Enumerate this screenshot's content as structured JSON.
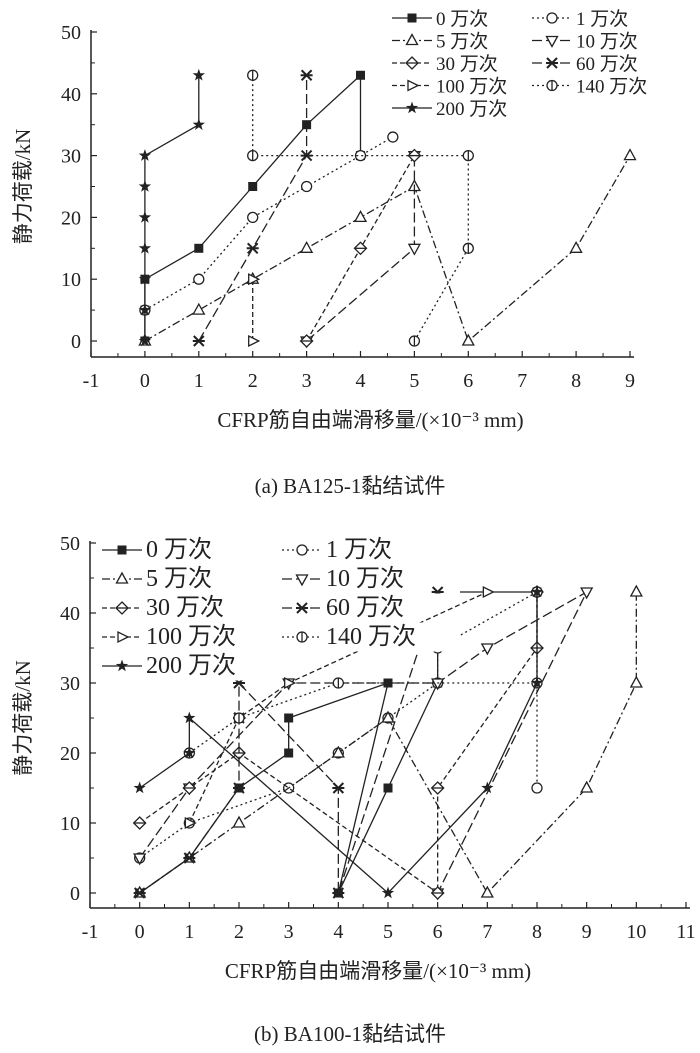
{
  "chart_data": [
    {
      "type": "line",
      "caption": "(a) BA125-1黏结试件",
      "xlabel": "CFRP筋自由端滑移量/(×10⁻³ mm)",
      "ylabel": "静力荷载/kN",
      "xlim": [
        -1,
        9
      ],
      "ylim": [
        0,
        50
      ],
      "xticks": [
        -1,
        0,
        1,
        2,
        3,
        4,
        5,
        6,
        7,
        8,
        9
      ],
      "yticks": [
        0,
        10,
        20,
        30,
        40,
        50
      ],
      "grid": false,
      "legend": "top-right",
      "series": [
        {
          "name": "0 万次",
          "marker": "square-filled",
          "dash": "solid",
          "points": [
            [
              0,
              0
            ],
            [
              0,
              5
            ],
            [
              0,
              10
            ],
            [
              1,
              15
            ],
            [
              2,
              25
            ],
            [
              3,
              35
            ],
            [
              4,
              43
            ],
            [
              4,
              30
            ]
          ]
        },
        {
          "name": "1 万次",
          "marker": "circle-open",
          "dash": "dot",
          "points": [
            [
              0,
              5
            ],
            [
              1,
              10
            ],
            [
              2,
              20
            ],
            [
              3,
              25
            ],
            [
              4,
              30
            ],
            [
              4.6,
              33
            ]
          ]
        },
        {
          "name": "5 万次",
          "marker": "triangle-up",
          "dash": "dashdot",
          "points": [
            [
              0,
              0
            ],
            [
              1,
              5
            ],
            [
              2,
              10
            ],
            [
              3,
              15
            ],
            [
              4,
              20
            ],
            [
              5,
              25
            ],
            [
              6,
              0
            ],
            [
              8,
              15
            ],
            [
              9,
              30
            ]
          ]
        },
        {
          "name": "10 万次",
          "marker": "triangle-down",
          "dash": "longdash",
          "points": [
            [
              3,
              0
            ],
            [
              5,
              15
            ],
            [
              5,
              30
            ]
          ]
        },
        {
          "name": "30 万次",
          "marker": "diamond",
          "dash": "dash",
          "points": [
            [
              3,
              0
            ],
            [
              4,
              15
            ],
            [
              5,
              30
            ]
          ]
        },
        {
          "name": "60 万次",
          "marker": "x-cross",
          "dash": "longdash",
          "points": [
            [
              1,
              0
            ],
            [
              2,
              15
            ],
            [
              3,
              30
            ],
            [
              3,
              43
            ]
          ]
        },
        {
          "name": "100 万次",
          "marker": "triangle-right",
          "dash": "dash",
          "points": [
            [
              2,
              0
            ],
            [
              2,
              10
            ]
          ]
        },
        {
          "name": "140 万次",
          "marker": "circle-bar",
          "dash": "dot",
          "points": [
            [
              5,
              0
            ],
            [
              6,
              15
            ],
            [
              6,
              30
            ],
            [
              2,
              30
            ],
            [
              2,
              43
            ]
          ]
        },
        {
          "name": "200 万次",
          "marker": "star",
          "dash": "solid",
          "points": [
            [
              0,
              0
            ],
            [
              0,
              5
            ],
            [
              0,
              10
            ],
            [
              0,
              15
            ],
            [
              0,
              20
            ],
            [
              0,
              25
            ],
            [
              0,
              30
            ],
            [
              1,
              35
            ],
            [
              1,
              43
            ]
          ]
        }
      ]
    },
    {
      "type": "line",
      "caption": "(b) BA100-1黏结试件",
      "xlabel": "CFRP筋自由端滑移量/(×10⁻³ mm)",
      "ylabel": "静力荷载/kN",
      "xlim": [
        -1,
        11
      ],
      "ylim": [
        0,
        50
      ],
      "xticks": [
        -1,
        0,
        1,
        2,
        3,
        4,
        5,
        6,
        7,
        8,
        9,
        10,
        11
      ],
      "yticks": [
        0,
        10,
        20,
        30,
        40,
        50
      ],
      "grid": false,
      "legend": "top-left",
      "series": [
        {
          "name": "0 万次",
          "marker": "square-filled",
          "dash": "solid",
          "points": [
            [
              0,
              0
            ],
            [
              1,
              5
            ],
            [
              2,
              15
            ],
            [
              3,
              20
            ],
            [
              3,
              25
            ],
            [
              5,
              30
            ],
            [
              4,
              0
            ],
            [
              5,
              15
            ],
            [
              6,
              30
            ],
            [
              6,
              43
            ],
            [
              8,
              43
            ]
          ]
        },
        {
          "name": "1 万次",
          "marker": "circle-open",
          "dash": "dot",
          "points": [
            [
              0,
              5
            ],
            [
              1,
              10
            ],
            [
              3,
              15
            ],
            [
              4,
              20
            ],
            [
              5,
              25
            ],
            [
              6,
              30
            ],
            [
              6,
              35
            ],
            [
              8,
              43
            ],
            [
              8,
              15
            ]
          ]
        },
        {
          "name": "5 万次",
          "marker": "triangle-up",
          "dash": "dashdot",
          "points": [
            [
              0,
              0
            ],
            [
              1,
              5
            ],
            [
              2,
              10
            ],
            [
              4,
              20
            ],
            [
              5,
              25
            ],
            [
              7,
              0
            ],
            [
              9,
              15
            ],
            [
              10,
              30
            ],
            [
              10,
              43
            ]
          ]
        },
        {
          "name": "10 万次",
          "marker": "triangle-down",
          "dash": "longdash",
          "points": [
            [
              0,
              5
            ],
            [
              1,
              15
            ],
            [
              3,
              30
            ],
            [
              6,
              30
            ],
            [
              7,
              35
            ],
            [
              9,
              43
            ],
            [
              6,
              0
            ]
          ]
        },
        {
          "name": "30 万次",
          "marker": "diamond",
          "dash": "dash",
          "points": [
            [
              0,
              10
            ],
            [
              1,
              15
            ],
            [
              2,
              20
            ],
            [
              6,
              0
            ],
            [
              6,
              15
            ],
            [
              8,
              35
            ],
            [
              8,
              43
            ]
          ]
        },
        {
          "name": "60 万次",
          "marker": "x-cross",
          "dash": "longdash",
          "points": [
            [
              0,
              0
            ],
            [
              1,
              5
            ],
            [
              2,
              15
            ],
            [
              2,
              25
            ],
            [
              2,
              30
            ],
            [
              4,
              15
            ],
            [
              4,
              0
            ],
            [
              6,
              43
            ]
          ]
        },
        {
          "name": "100 万次",
          "marker": "triangle-right",
          "dash": "dash",
          "points": [
            [
              1,
              10
            ],
            [
              2,
              25
            ],
            [
              3,
              30
            ],
            [
              7,
              43
            ]
          ]
        },
        {
          "name": "140 万次",
          "marker": "circle-bar",
          "dash": "dot",
          "points": [
            [
              1,
              20
            ],
            [
              2,
              25
            ],
            [
              4,
              30
            ],
            [
              8,
              30
            ],
            [
              8,
              43
            ]
          ]
        },
        {
          "name": "200 万次",
          "marker": "star",
          "dash": "solid",
          "points": [
            [
              0,
              15
            ],
            [
              1,
              20
            ],
            [
              1,
              25
            ],
            [
              5,
              0
            ],
            [
              7,
              15
            ],
            [
              8,
              30
            ],
            [
              8,
              43
            ]
          ]
        }
      ]
    }
  ]
}
